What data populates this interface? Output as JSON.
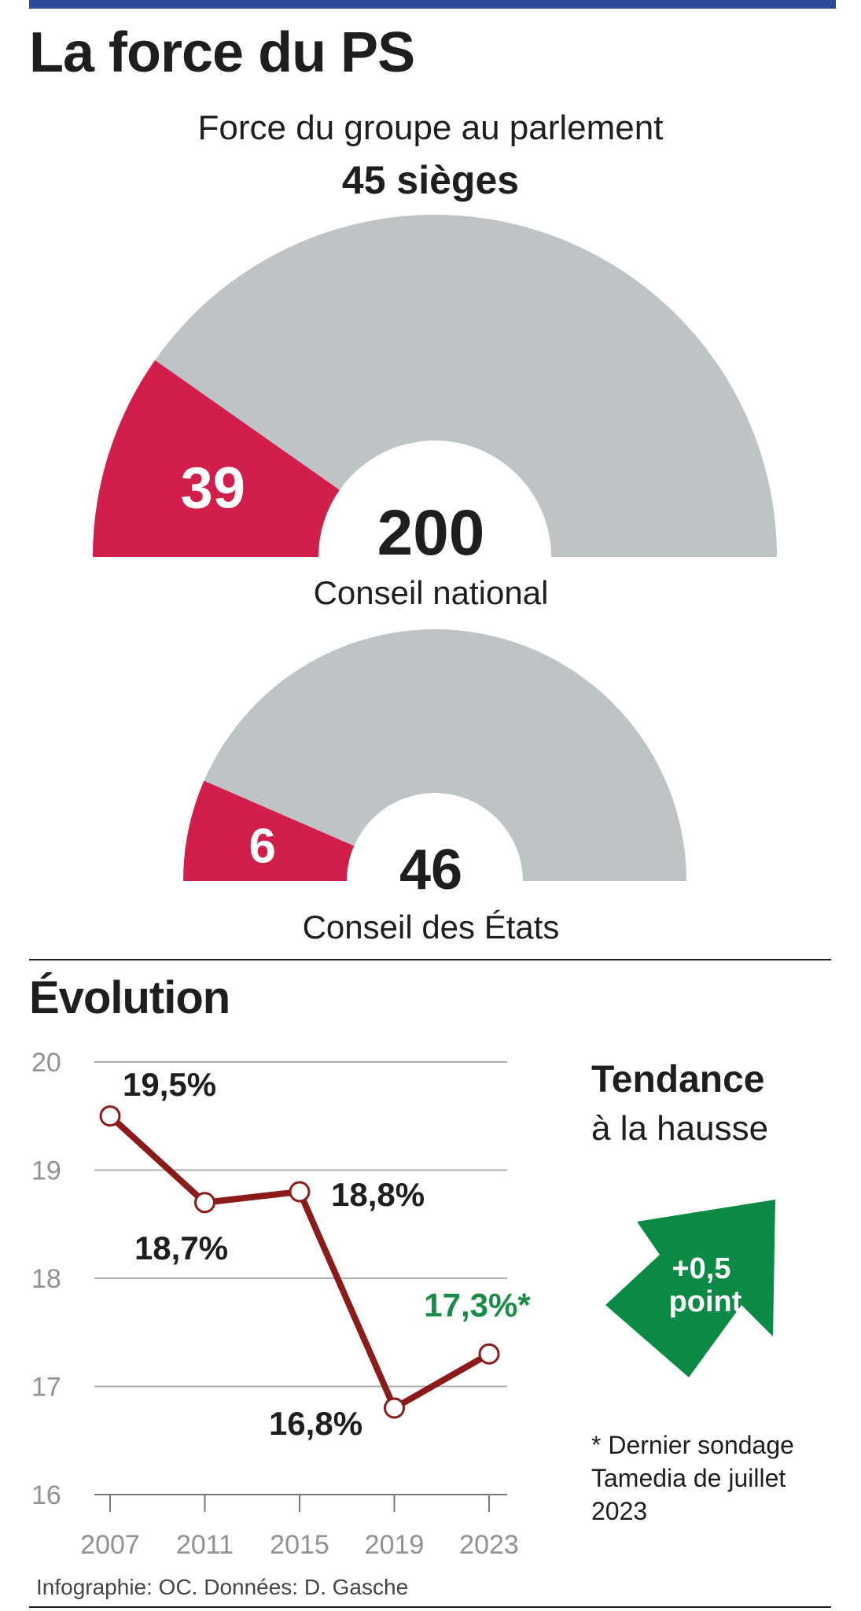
{
  "title": "La force du PS",
  "subtitle": "Force du groupe au parlement",
  "seats_total": "45 sièges",
  "colors": {
    "ps": "#d21e4a",
    "others": "#bec3c6",
    "line": "#8b1a1a",
    "poll": "#1a8c48",
    "arrow": "#0b8a45",
    "bar": "#2c4a9a"
  },
  "chambers": [
    {
      "name": "Conseil national",
      "ps_seats": 39,
      "total_seats": 200,
      "ps_label": "39",
      "total_label": "200"
    },
    {
      "name": "Conseil des États",
      "ps_seats": 6,
      "total_seats": 46,
      "ps_label": "6",
      "total_label": "46"
    }
  ],
  "evolution_title": "Évolution",
  "trend": {
    "title": "Tendance",
    "subtitle": "à la hausse",
    "arrow_text_1": "+0,5",
    "arrow_text_2": "point",
    "icon": "up-arrow-icon"
  },
  "footnote": "* Dernier sondage Tamedia de juillet 2023",
  "credit": "Infographie: OC. Données: D. Gasche",
  "chart_data": {
    "type": "line",
    "x": [
      "2007",
      "2011",
      "2015",
      "2019",
      "2023"
    ],
    "series": [
      {
        "values": [
          19.5,
          18.7,
          18.8,
          16.8,
          17.3
        ],
        "labels": [
          "19,5%",
          "18,7%",
          "18,8%",
          "16,8%",
          "17,3%*"
        ]
      }
    ],
    "yticks": [
      "16",
      "17",
      "18",
      "19",
      "20"
    ],
    "ylim": [
      16,
      20
    ],
    "grid": true,
    "highlight_last": true
  }
}
